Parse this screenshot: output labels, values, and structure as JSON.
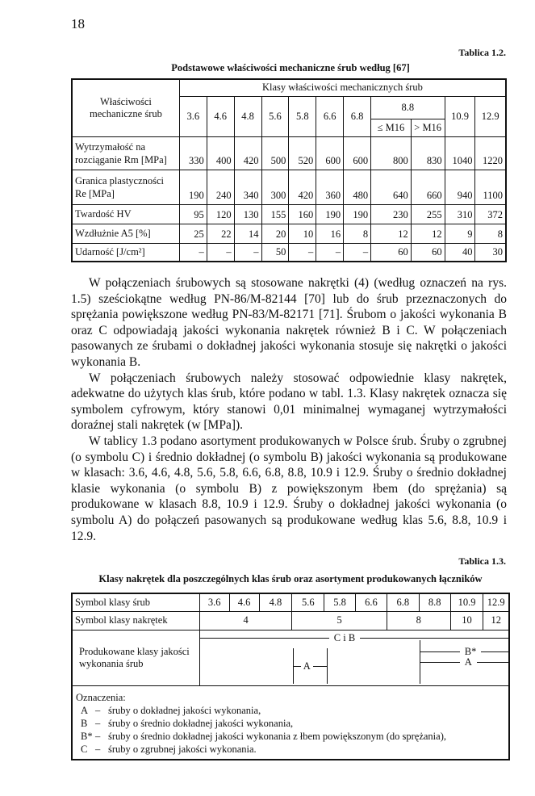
{
  "page_number": "18",
  "table_1_2": {
    "label": "Tablica 1.2.",
    "title": "Podstawowe właściwości mechaniczne śrub według [67]",
    "row_header": "Właściwości mechaniczne śrub",
    "group_header": "Klasy właściwości mechanicznych śrub",
    "classes_before": [
      "3.6",
      "4.6",
      "4.8",
      "5.6",
      "5.8",
      "6.6",
      "6.8"
    ],
    "class_88": "8.8",
    "sub_88": [
      "≤ M16",
      "> M16"
    ],
    "classes_after": [
      "10.9",
      "12.9"
    ],
    "rows": [
      {
        "label": "Wytrzymałość na rozciąganie Rm [MPa]",
        "values": [
          "330",
          "400",
          "420",
          "500",
          "520",
          "600",
          "600",
          "800",
          "830",
          "1040",
          "1220"
        ]
      },
      {
        "label": "Granica plastyczności Re [MPa]",
        "values": [
          "190",
          "240",
          "340",
          "300",
          "420",
          "360",
          "480",
          "640",
          "660",
          "940",
          "1100"
        ]
      },
      {
        "label": "Twardość HV",
        "values": [
          "95",
          "120",
          "130",
          "155",
          "160",
          "190",
          "190",
          "230",
          "255",
          "310",
          "372"
        ]
      },
      {
        "label": "Wzdłużnie A5 [%]",
        "values": [
          "25",
          "22",
          "14",
          "20",
          "10",
          "16",
          "8",
          "12",
          "12",
          "9",
          "8"
        ]
      },
      {
        "label": "Udarność [J/cm²]",
        "values": [
          "–",
          "–",
          "–",
          "50",
          "–",
          "–",
          "–",
          "60",
          "60",
          "40",
          "30"
        ]
      }
    ]
  },
  "paragraphs": [
    "W połączeniach śrubowych są stosowane nakrętki (4) (według oznaczeń na rys. 1.5) sześciokątne według PN-86/M-82144 [70] lub do śrub przeznaczonych do sprężania powiększone według PN-83/M-82171 [71]. Śrubom o jakości wykonania B oraz C odpowiadają jakości wykonania nakrętek również B i C. W połączeniach pasowanych ze śrubami o dokładnej jakości wykonania stosuje się nakrętki o jakości wykonania B.",
    "W połączeniach śrubowych należy stosować odpowiednie klasy nakrętek, adekwatne do użytych klas śrub, które podano w tabl. 1.3. Klasy nakrętek oznacza się symbolem cyfrowym, który stanowi 0,01 minimalnej wymaganej wytrzymałości doraźnej stali nakrętek (w [MPa]).",
    "W tablicy 1.3 podano asortyment produkowanych w Polsce śrub. Śruby o zgrubnej (o symbolu C) i średnio dokładnej (o symbolu B) jakości wykonania są produkowane w klasach: 3.6, 4.6, 4.8, 5.6, 5.8, 6.6, 6.8, 8.8, 10.9 i 12.9. Śruby o średnio dokładnej klasie wykonania (o symbolu B) z powiększonym łbem (do sprężania) są produkowane w klasach 8.8, 10.9 i 12.9. Śruby o dokładnej jakości wykonania (o symbolu A) do połączeń pasowanych są produkowane według klas 5.6, 8.8, 10.9 i 12.9."
  ],
  "table_1_3": {
    "label": "Tablica 1.3.",
    "title": "Klasy nakrętek dla poszczególnych klas śrub oraz asortyment produkowanych łączników",
    "row1_label": "Symbol klasy śrub",
    "bolt_classes": [
      "3.6",
      "4.6",
      "4.8",
      "5.6",
      "5.8",
      "6.6",
      "6.8",
      "8.8",
      "10.9",
      "12.9"
    ],
    "row2_label": "Symbol klasy nakrętek",
    "nut_classes": [
      "4",
      "5",
      "8",
      "10",
      "12"
    ],
    "row3_label": "Produkowane klasy jakości wykonania śrub",
    "arrows": {
      "cib": "C i B",
      "a_mid": "A",
      "bstar": "B*",
      "a_right": "A"
    },
    "legend_title": "Oznaczenia:",
    "legend": [
      {
        "key": "A",
        "text": "śruby o dokładnej jakości wykonania,"
      },
      {
        "key": "B",
        "text": "śruby o średnio dokładnej jakości wykonania,"
      },
      {
        "key": "B*",
        "text": "śruby o średnio dokładnej jakości wykonania z łbem powiększonym (do sprężania),"
      },
      {
        "key": "C",
        "text": "śruby o zgrubnej jakości wykonania."
      }
    ]
  }
}
